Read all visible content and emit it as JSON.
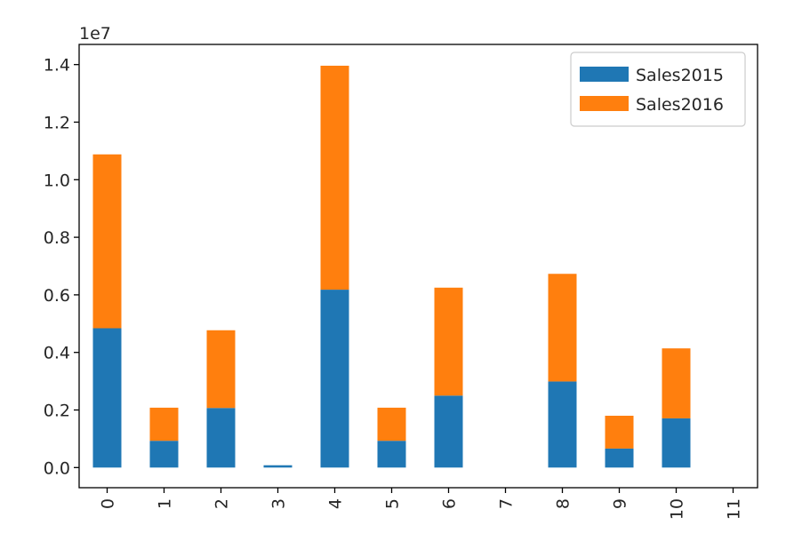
{
  "chart_data": {
    "type": "bar",
    "stacked": true,
    "title": "",
    "xlabel": "",
    "ylabel": "",
    "y_offset_label": "1e7",
    "categories": [
      "0",
      "1",
      "2",
      "3",
      "4",
      "5",
      "6",
      "7",
      "8",
      "9",
      "10",
      "11"
    ],
    "series": [
      {
        "name": "Sales2015",
        "color": "#1f77b4",
        "values": [
          0.484,
          0.093,
          0.207,
          0.008,
          0.618,
          0.093,
          0.25,
          0.0,
          0.299,
          0.066,
          0.171,
          0.0
        ]
      },
      {
        "name": "Sales2016",
        "color": "#ff7f0e",
        "values": [
          0.604,
          0.115,
          0.27,
          0.0,
          0.778,
          0.115,
          0.375,
          0.0,
          0.374,
          0.114,
          0.243,
          0.0
        ]
      }
    ],
    "value_scale": 10000000,
    "ylim": [
      -0.07,
      1.47
    ],
    "yticks": [
      "0.0",
      "0.2",
      "0.4",
      "0.6",
      "0.8",
      "1.0",
      "1.2",
      "1.4"
    ],
    "ytick_values": [
      0.0,
      0.2,
      0.4,
      0.6,
      0.8,
      1.0,
      1.2,
      1.4
    ],
    "x_tick_rotation": "vertical",
    "grid": false,
    "legend_position": "top-right"
  }
}
